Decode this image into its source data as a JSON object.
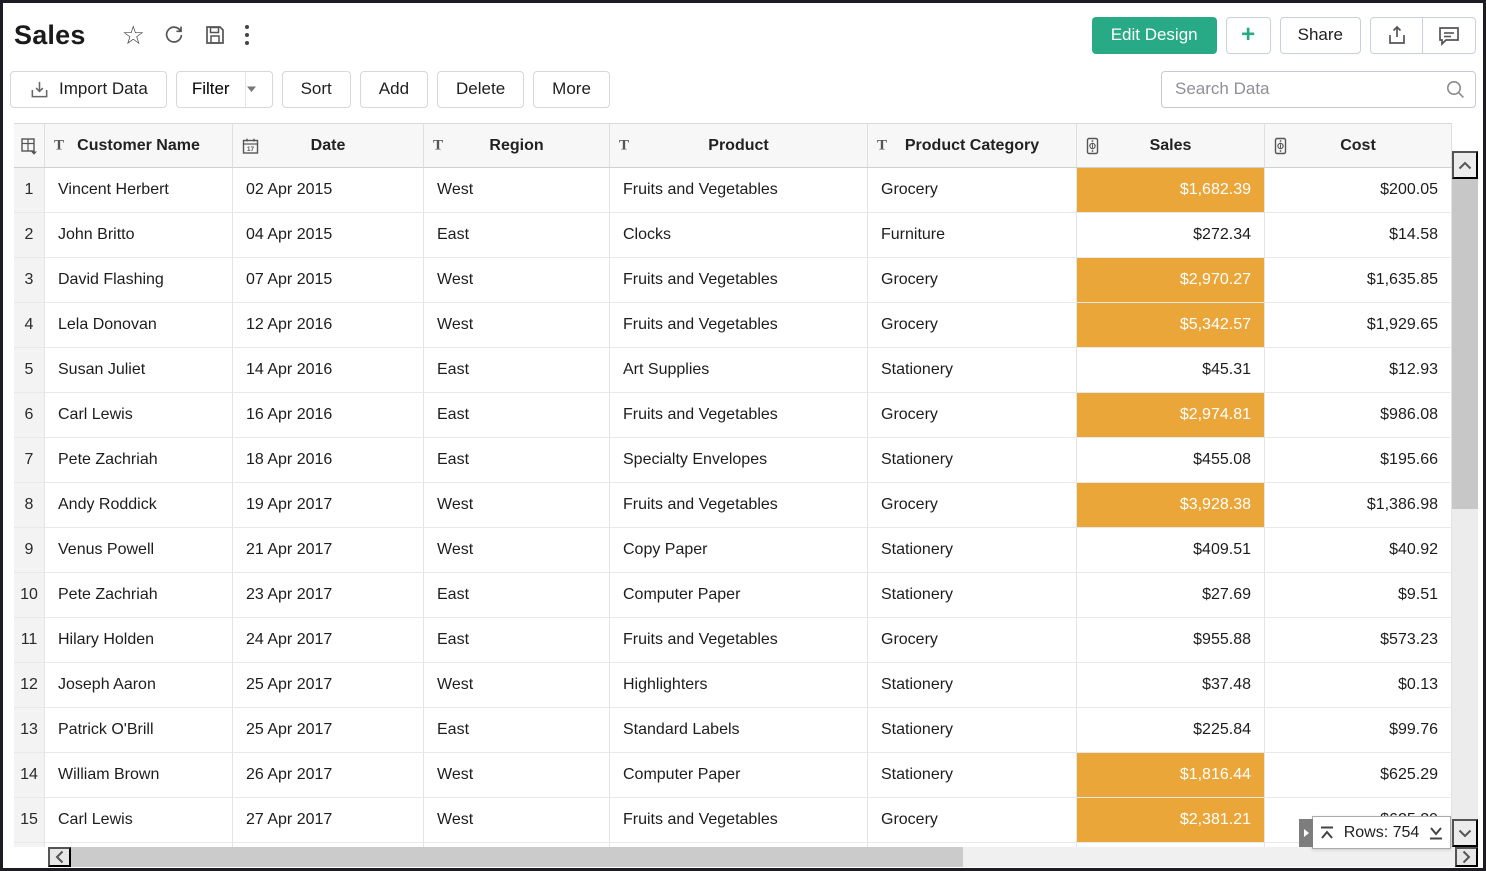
{
  "header": {
    "title": "Sales",
    "edit_design_label": "Edit Design",
    "plus_label": "+",
    "share_label": "Share"
  },
  "toolbar": {
    "import_label": "Import Data",
    "filter_label": "Filter",
    "sort_label": "Sort",
    "add_label": "Add",
    "delete_label": "Delete",
    "more_label": "More",
    "search_placeholder": "Search Data"
  },
  "table": {
    "columns": [
      {
        "label": "Customer Name",
        "type": "text"
      },
      {
        "label": "Date",
        "type": "date"
      },
      {
        "label": "Region",
        "type": "text"
      },
      {
        "label": "Product",
        "type": "text"
      },
      {
        "label": "Product Category",
        "type": "text"
      },
      {
        "label": "Sales",
        "type": "currency"
      },
      {
        "label": "Cost",
        "type": "currency"
      }
    ],
    "rows": [
      {
        "num": "1",
        "customer": "Vincent Herbert",
        "date": "02 Apr 2015",
        "region": "West",
        "product": "Fruits and Vegetables",
        "category": "Grocery",
        "sales": "$1,682.39",
        "sales_highlight": true,
        "cost": "$200.05"
      },
      {
        "num": "2",
        "customer": "John Britto",
        "date": "04 Apr 2015",
        "region": "East",
        "product": "Clocks",
        "category": "Furniture",
        "sales": "$272.34",
        "sales_highlight": false,
        "cost": "$14.58"
      },
      {
        "num": "3",
        "customer": "David Flashing",
        "date": "07 Apr 2015",
        "region": "West",
        "product": "Fruits and Vegetables",
        "category": "Grocery",
        "sales": "$2,970.27",
        "sales_highlight": true,
        "cost": "$1,635.85"
      },
      {
        "num": "4",
        "customer": "Lela Donovan",
        "date": "12 Apr 2016",
        "region": "West",
        "product": "Fruits and Vegetables",
        "category": "Grocery",
        "sales": "$5,342.57",
        "sales_highlight": true,
        "cost": "$1,929.65"
      },
      {
        "num": "5",
        "customer": "Susan Juliet",
        "date": "14 Apr 2016",
        "region": "East",
        "product": "Art Supplies",
        "category": "Stationery",
        "sales": "$45.31",
        "sales_highlight": false,
        "cost": "$12.93"
      },
      {
        "num": "6",
        "customer": "Carl Lewis",
        "date": "16 Apr 2016",
        "region": "East",
        "product": "Fruits and Vegetables",
        "category": "Grocery",
        "sales": "$2,974.81",
        "sales_highlight": true,
        "cost": "$986.08"
      },
      {
        "num": "7",
        "customer": "Pete Zachriah",
        "date": "18 Apr 2016",
        "region": "East",
        "product": "Specialty Envelopes",
        "category": "Stationery",
        "sales": "$455.08",
        "sales_highlight": false,
        "cost": "$195.66"
      },
      {
        "num": "8",
        "customer": "Andy Roddick",
        "date": "19 Apr 2017",
        "region": "West",
        "product": "Fruits and Vegetables",
        "category": "Grocery",
        "sales": "$3,928.38",
        "sales_highlight": true,
        "cost": "$1,386.98"
      },
      {
        "num": "9",
        "customer": "Venus Powell",
        "date": "21 Apr 2017",
        "region": "West",
        "product": "Copy Paper",
        "category": "Stationery",
        "sales": "$409.51",
        "sales_highlight": false,
        "cost": "$40.92"
      },
      {
        "num": "10",
        "customer": "Pete Zachriah",
        "date": "23 Apr 2017",
        "region": "East",
        "product": "Computer Paper",
        "category": "Stationery",
        "sales": "$27.69",
        "sales_highlight": false,
        "cost": "$9.51"
      },
      {
        "num": "11",
        "customer": "Hilary Holden",
        "date": "24 Apr 2017",
        "region": "East",
        "product": "Fruits and Vegetables",
        "category": "Grocery",
        "sales": "$955.88",
        "sales_highlight": false,
        "cost": "$573.23"
      },
      {
        "num": "12",
        "customer": "Joseph Aaron",
        "date": "25 Apr 2017",
        "region": "West",
        "product": "Highlighters",
        "category": "Stationery",
        "sales": "$37.48",
        "sales_highlight": false,
        "cost": "$0.13"
      },
      {
        "num": "13",
        "customer": "Patrick O'Brill",
        "date": "25 Apr 2017",
        "region": "East",
        "product": "Standard Labels",
        "category": "Stationery",
        "sales": "$225.84",
        "sales_highlight": false,
        "cost": "$99.76"
      },
      {
        "num": "14",
        "customer": "William Brown",
        "date": "26 Apr 2017",
        "region": "West",
        "product": "Computer Paper",
        "category": "Stationery",
        "sales": "$1,816.44",
        "sales_highlight": true,
        "cost": "$625.29"
      },
      {
        "num": "15",
        "customer": "Carl Lewis",
        "date": "27 Apr 2017",
        "region": "West",
        "product": "Fruits and Vegetables",
        "category": "Grocery",
        "sales": "$2,381.21",
        "sales_highlight": true,
        "cost": "$625.29"
      }
    ]
  },
  "status": {
    "rows_text": "Rows: 754"
  },
  "colors": {
    "accent_green": "#27aa85",
    "highlight_amber": "#ebа63a",
    "highlight_amber_hex": "#EBA63A"
  }
}
